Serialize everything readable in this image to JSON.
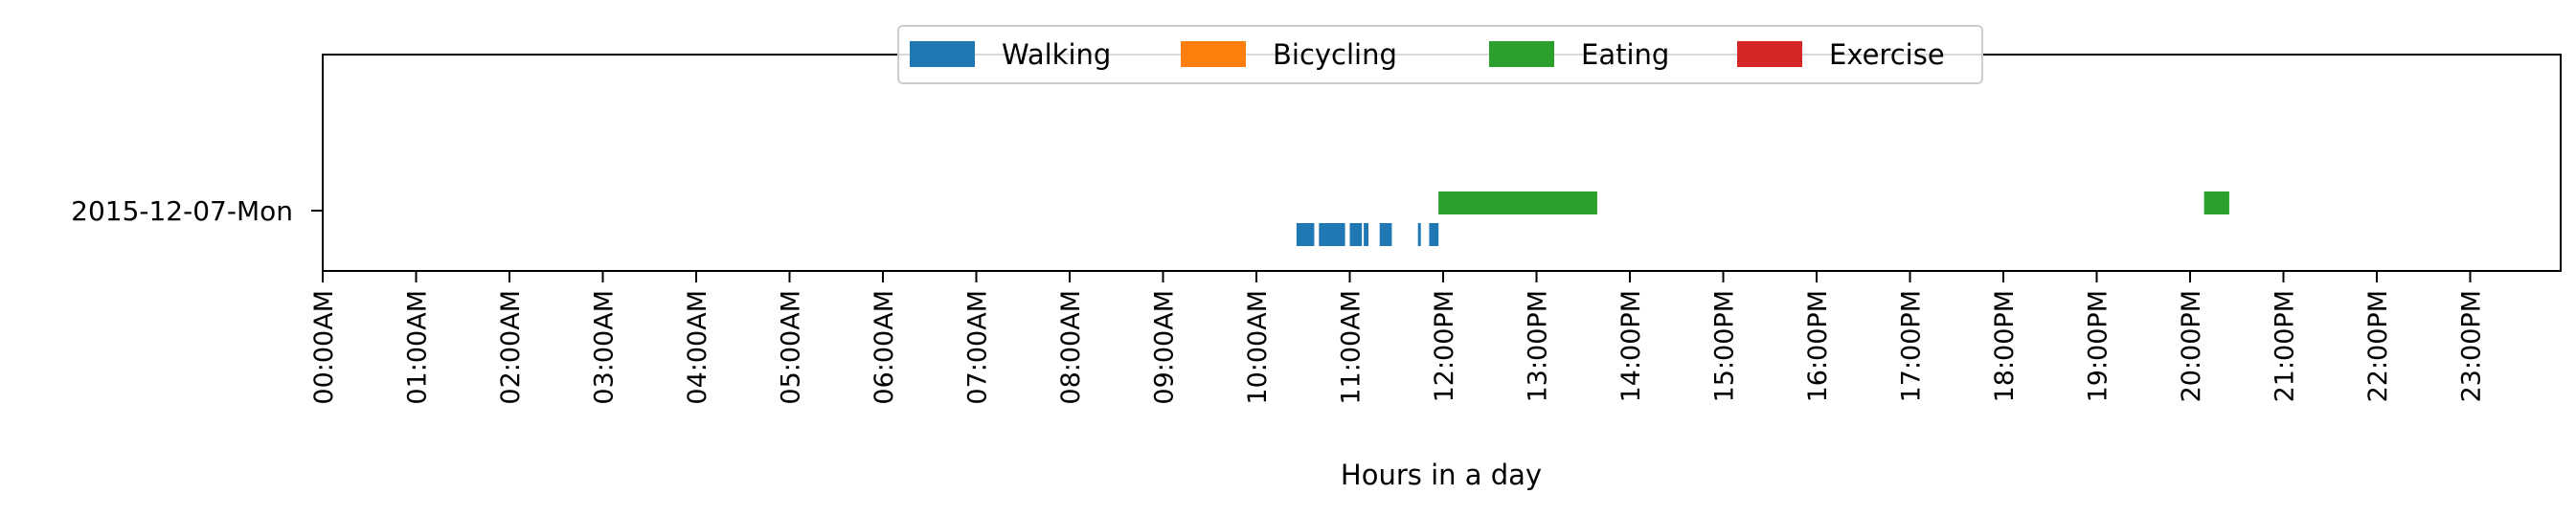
{
  "chart_data": {
    "type": "timeline",
    "xlabel": "Hours in a day",
    "xlim": [
      0,
      24
    ],
    "category": "2015-12-07-Mon",
    "x_ticks": [
      "00:00AM",
      "01:00AM",
      "02:00AM",
      "03:00AM",
      "04:00AM",
      "05:00AM",
      "06:00AM",
      "07:00AM",
      "08:00AM",
      "09:00AM",
      "10:00AM",
      "11:00AM",
      "12:00PM",
      "13:00PM",
      "14:00PM",
      "15:00PM",
      "16:00PM",
      "17:00PM",
      "18:00PM",
      "19:00PM",
      "20:00PM",
      "21:00PM",
      "22:00PM",
      "23:00PM"
    ],
    "legend": [
      {
        "name": "Walking",
        "color": "#1f77b4"
      },
      {
        "name": "Bicycling",
        "color": "#ff7f0e"
      },
      {
        "name": "Eating",
        "color": "#2ca02c"
      },
      {
        "name": "Exercise",
        "color": "#d62728"
      }
    ],
    "legend_position": "top-center",
    "series": [
      {
        "name": "Walking",
        "color": "#1f77b4",
        "lane": "lower",
        "intervals": [
          [
            10.43,
            10.62
          ],
          [
            10.67,
            10.95
          ],
          [
            11.0,
            11.13
          ],
          [
            11.15,
            11.2
          ],
          [
            11.32,
            11.45
          ],
          [
            11.73,
            11.76
          ],
          [
            11.85,
            11.95
          ]
        ]
      },
      {
        "name": "Bicycling",
        "color": "#ff7f0e",
        "lane": "upper",
        "intervals": []
      },
      {
        "name": "Eating",
        "color": "#2ca02c",
        "lane": "upper",
        "intervals": [
          [
            11.95,
            13.65
          ],
          [
            20.15,
            20.42
          ]
        ]
      },
      {
        "name": "Exercise",
        "color": "#d62728",
        "lane": "upper",
        "intervals": []
      }
    ]
  }
}
